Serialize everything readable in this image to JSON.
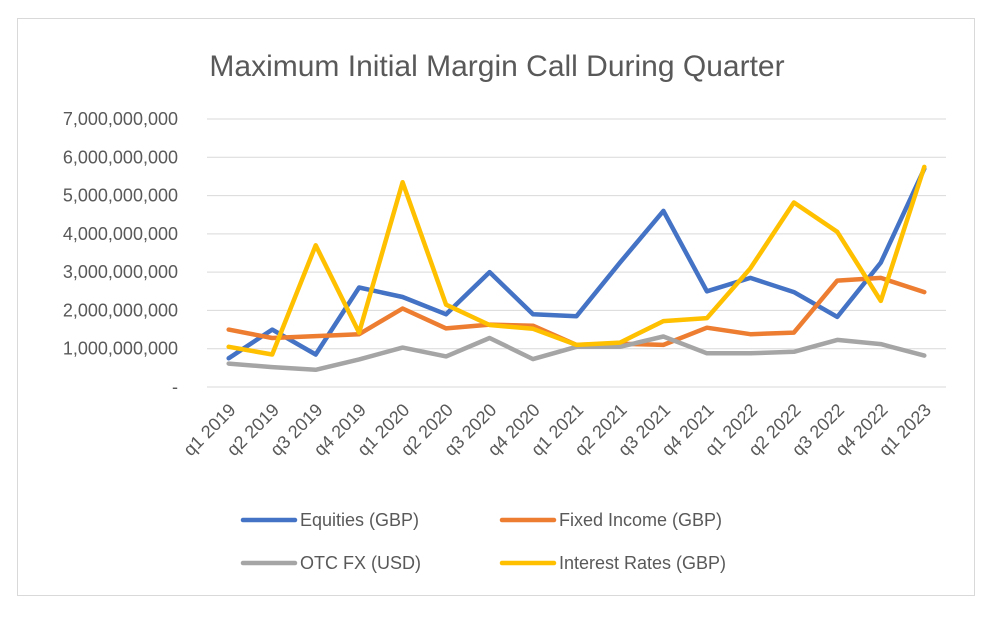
{
  "chart_data": {
    "type": "line",
    "title": "Maximum Initial Margin Call During Quarter",
    "xlabel": "",
    "ylabel": "",
    "ylim": [
      0,
      7000000000
    ],
    "yticks": [
      0,
      1000000000,
      2000000000,
      3000000000,
      4000000000,
      5000000000,
      6000000000,
      7000000000
    ],
    "ytick_labels": [
      "-",
      "1,000,000,000",
      "2,000,000,000",
      "3,000,000,000",
      "4,000,000,000",
      "5,000,000,000",
      "6,000,000,000",
      "7,000,000,000"
    ],
    "grid": true,
    "legend_position": "bottom",
    "categories": [
      "q1 2019",
      "q2 2019",
      "q3 2019",
      "q4 2019",
      "q1 2020",
      "q2 2020",
      "q3 2020",
      "q4 2020",
      "q1 2021",
      "q2 2021",
      "q3 2021",
      "q4 2021",
      "q1 2022",
      "q2 2022",
      "q3 2022",
      "q4 2022",
      "q1 2023"
    ],
    "series": [
      {
        "name": "Equities (GBP)",
        "color": "#4472c4",
        "values": [
          750000000,
          1500000000,
          850000000,
          2600000000,
          2350000000,
          1900000000,
          3000000000,
          1900000000,
          1850000000,
          3250000000,
          4600000000,
          2500000000,
          2850000000,
          2480000000,
          1830000000,
          3250000000,
          5700000000
        ]
      },
      {
        "name": "Fixed Income (GBP)",
        "color": "#ed7d31",
        "values": [
          1500000000,
          1280000000,
          1330000000,
          1380000000,
          2050000000,
          1530000000,
          1630000000,
          1600000000,
          1100000000,
          1130000000,
          1100000000,
          1550000000,
          1380000000,
          1420000000,
          2780000000,
          2850000000,
          2480000000
        ]
      },
      {
        "name": "OTC FX (USD)",
        "color": "#a5a5a5",
        "values": [
          610000000,
          520000000,
          450000000,
          720000000,
          1030000000,
          800000000,
          1280000000,
          730000000,
          1050000000,
          1050000000,
          1320000000,
          880000000,
          880000000,
          920000000,
          1230000000,
          1120000000,
          820000000
        ]
      },
      {
        "name": "Interest Rates (GBP)",
        "color": "#ffc000",
        "values": [
          1050000000,
          850000000,
          3700000000,
          1420000000,
          5350000000,
          2150000000,
          1620000000,
          1520000000,
          1100000000,
          1160000000,
          1720000000,
          1800000000,
          3100000000,
          4820000000,
          4050000000,
          2250000000,
          5750000000
        ]
      }
    ]
  }
}
